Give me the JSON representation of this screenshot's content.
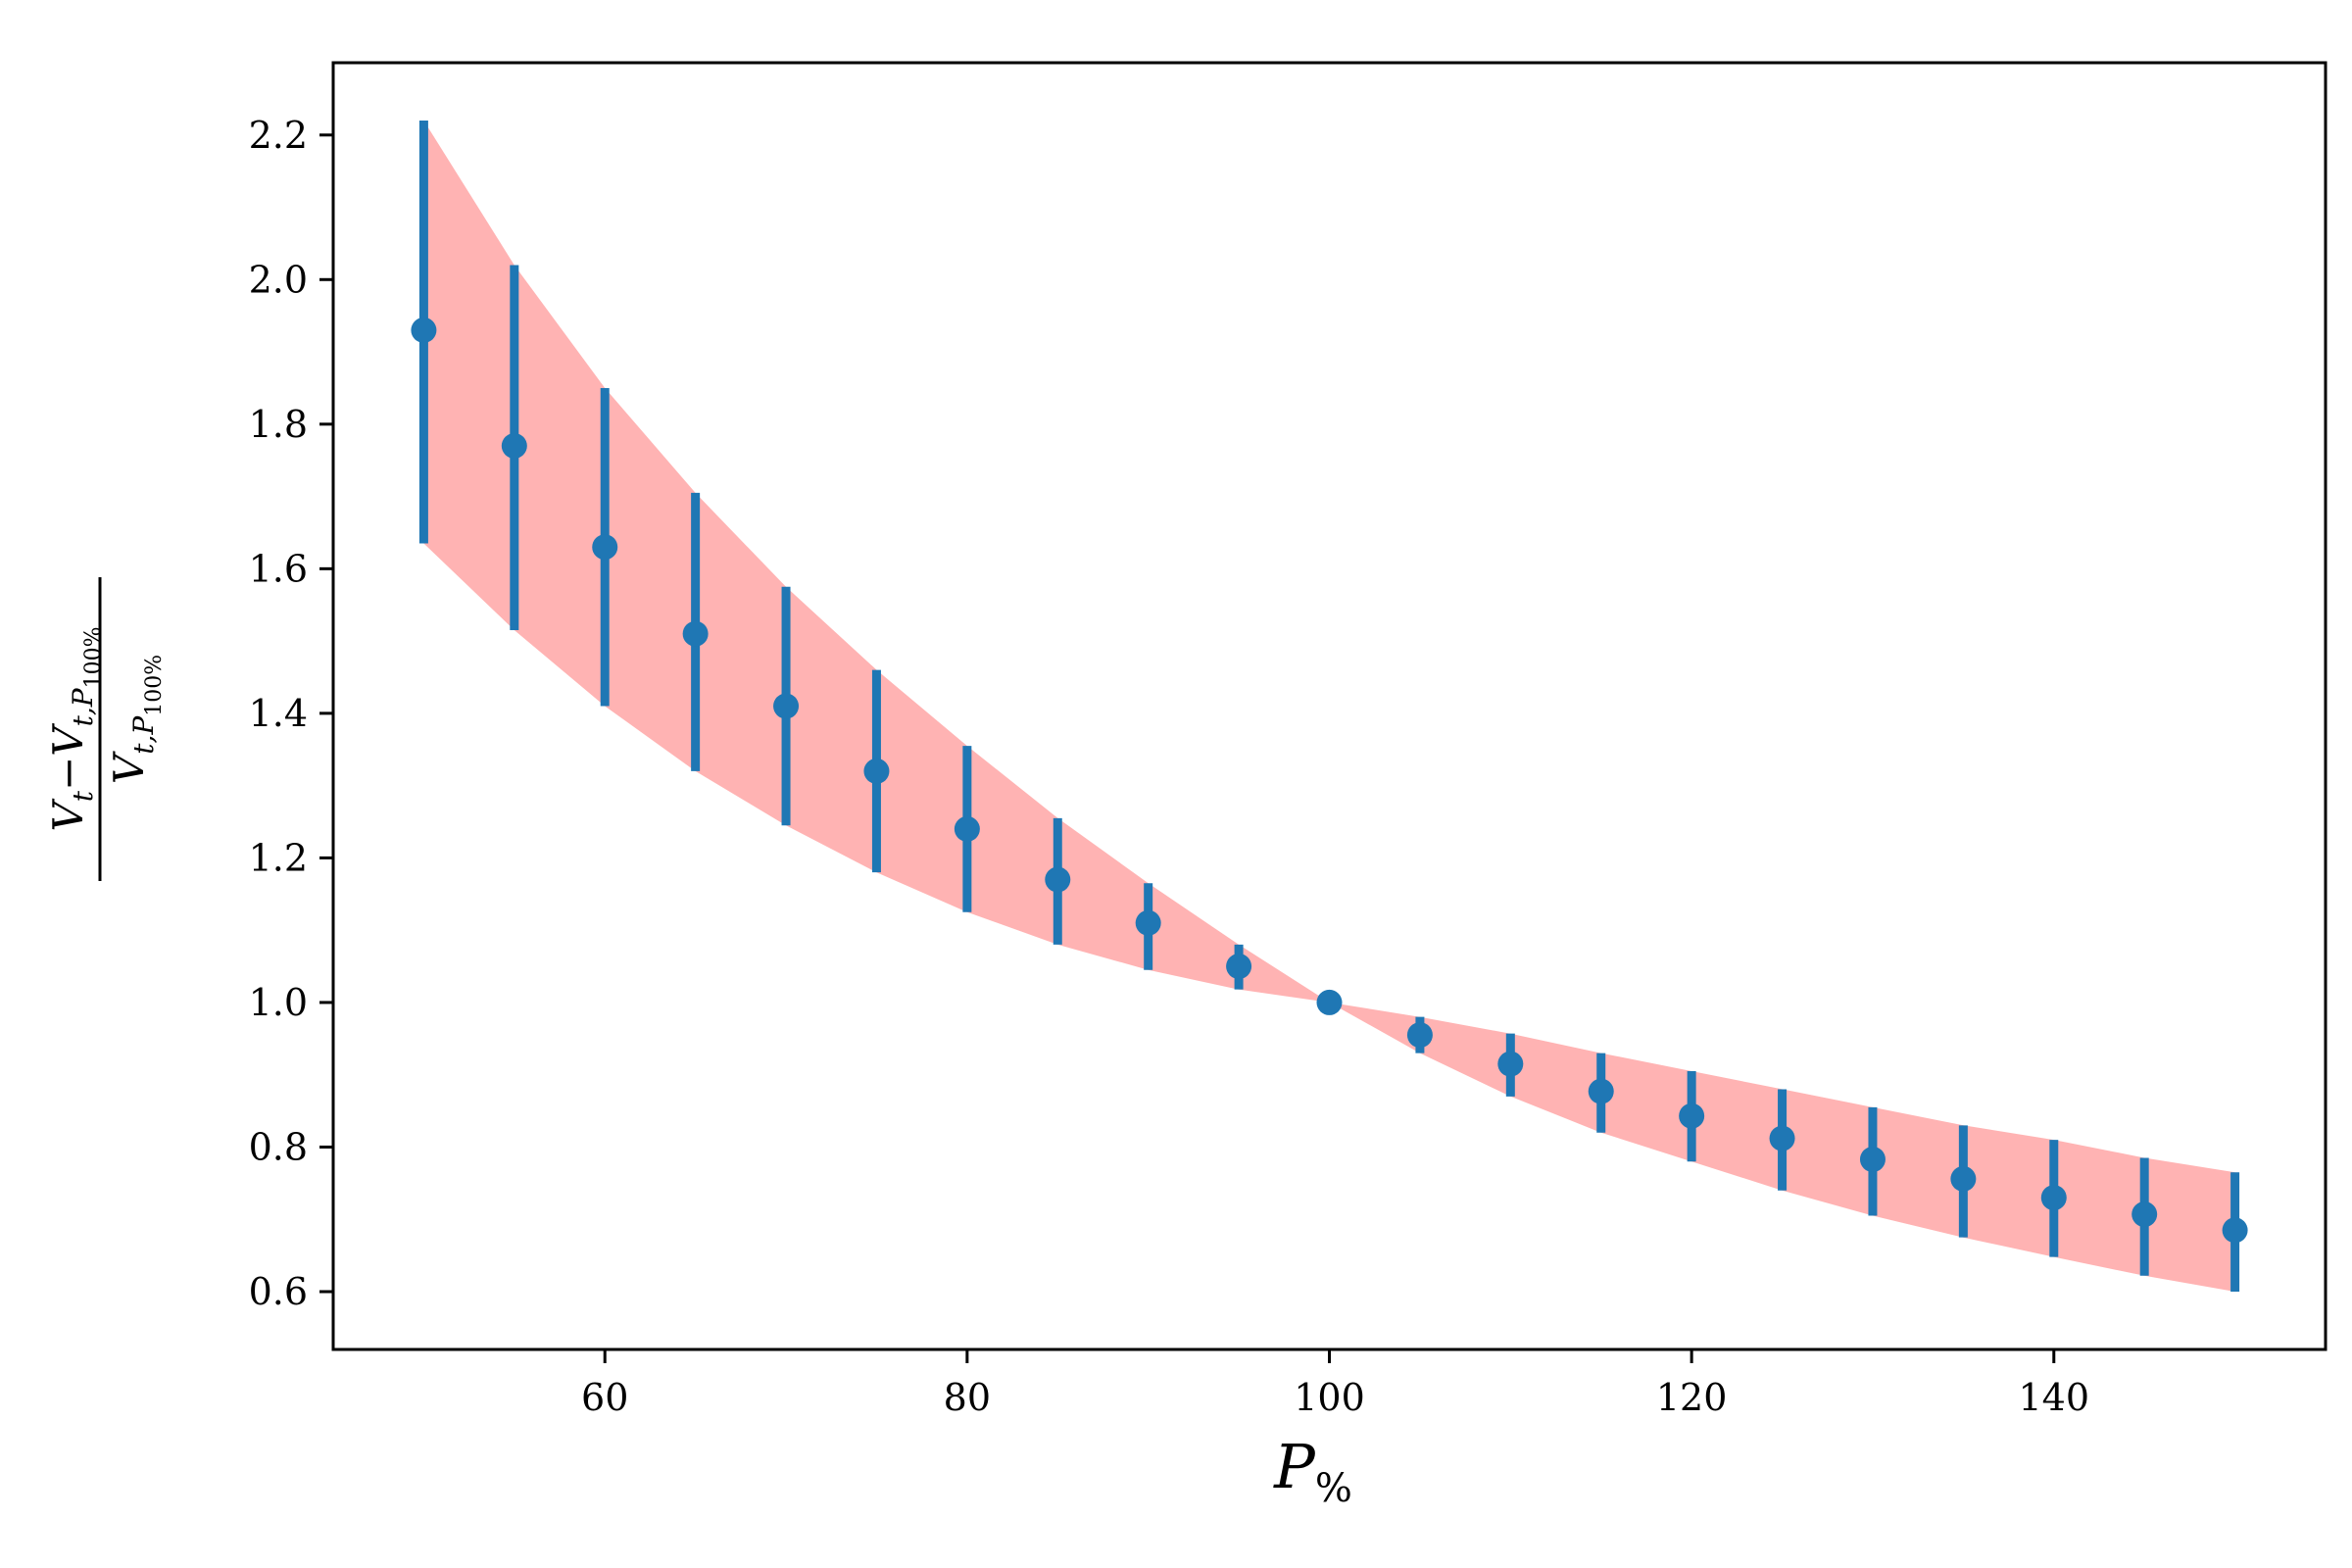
{
  "chart_data": {
    "type": "scatter",
    "title": "",
    "xlabel": {
      "main": "P",
      "sub": "%"
    },
    "ylabel": {
      "numerator_a": "V",
      "numerator_a_sub": "t",
      "minus": "−",
      "numerator_b": "V",
      "numerator_b_sub": "t,P",
      "numerator_b_subsub": "100%",
      "denominator": "V",
      "denominator_sub": "t,P",
      "denominator_subsub": "100%"
    },
    "xlim": [
      45,
      155
    ],
    "ylim": [
      0.52,
      2.3
    ],
    "xticks": [
      60,
      80,
      100,
      120,
      140
    ],
    "yticks": [
      0.6,
      0.8,
      1.0,
      1.2,
      1.4,
      1.6,
      1.8,
      2.0,
      2.2
    ],
    "x": [
      50,
      55,
      60,
      65,
      70,
      75,
      80,
      85,
      90,
      95,
      100,
      105,
      110,
      115,
      120,
      125,
      130,
      135,
      140,
      145,
      150
    ],
    "y": [
      1.93,
      1.77,
      1.63,
      1.51,
      1.41,
      1.32,
      1.24,
      1.17,
      1.11,
      1.05,
      1.0,
      0.955,
      0.915,
      0.877,
      0.843,
      0.812,
      0.783,
      0.756,
      0.73,
      0.707,
      0.685
    ],
    "err_low": [
      1.635,
      1.515,
      1.41,
      1.32,
      1.245,
      1.18,
      1.125,
      1.08,
      1.045,
      1.018,
      1.0,
      0.93,
      0.87,
      0.82,
      0.78,
      0.74,
      0.705,
      0.675,
      0.648,
      0.622,
      0.6
    ],
    "err_high": [
      2.22,
      2.02,
      1.85,
      1.705,
      1.575,
      1.46,
      1.355,
      1.255,
      1.165,
      1.08,
      1.0,
      0.98,
      0.957,
      0.93,
      0.905,
      0.88,
      0.855,
      0.83,
      0.81,
      0.785,
      0.765
    ],
    "colors": {
      "points": "#1f77b4",
      "band": "#ffb3b3",
      "axis": "#000000"
    }
  }
}
